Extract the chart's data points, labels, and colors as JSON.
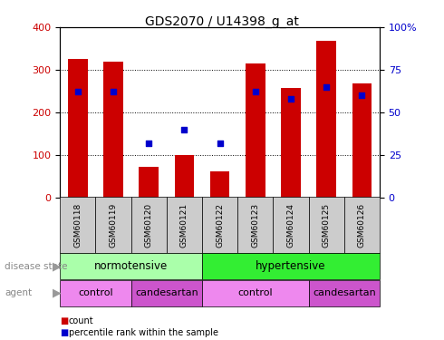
{
  "title": "GDS2070 / U14398_g_at",
  "samples": [
    "GSM60118",
    "GSM60119",
    "GSM60120",
    "GSM60121",
    "GSM60122",
    "GSM60123",
    "GSM60124",
    "GSM60125",
    "GSM60126"
  ],
  "counts": [
    325,
    318,
    72,
    100,
    60,
    315,
    258,
    368,
    267
  ],
  "percentiles": [
    62,
    62,
    32,
    40,
    32,
    62,
    58,
    65,
    60
  ],
  "ylim_left": [
    0,
    400
  ],
  "ylim_right": [
    0,
    100
  ],
  "yticks_left": [
    0,
    100,
    200,
    300,
    400
  ],
  "yticks_right": [
    0,
    25,
    50,
    75,
    100
  ],
  "yticklabels_right": [
    "0",
    "25",
    "50",
    "75",
    "100%"
  ],
  "bar_color": "#cc0000",
  "dot_color": "#0000cc",
  "grid_color": "#000000",
  "sample_box_color": "#cccccc",
  "norm_color": "#aaffaa",
  "hyp_color": "#33ee33",
  "control_color": "#ee88ee",
  "candesartan_color": "#cc55cc",
  "left_label_color": "#888888",
  "arrow_color": "#999999"
}
